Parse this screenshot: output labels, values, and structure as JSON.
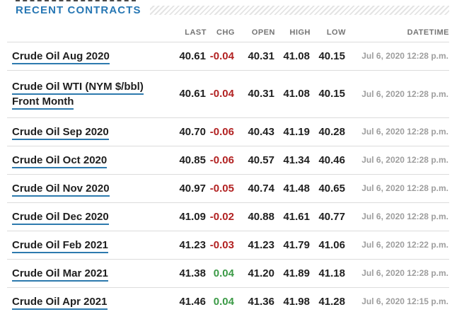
{
  "title": "RECENT CONTRACTS",
  "colors": {
    "accent_blue": "#2777b4",
    "negative_red": "#b22222",
    "positive_green": "#3b9a46",
    "header_gray": "#757575",
    "datetime_gray": "#9e9e9e",
    "link_underline_blue": "#2d7aae",
    "divider_gray": "#dcdcdc",
    "value_black": "#1f1f1f"
  },
  "table": {
    "columns": [
      "LAST",
      "CHG",
      "OPEN",
      "HIGH",
      "LOW",
      "DATETIME"
    ],
    "rows": [
      {
        "name": "Crude Oil Aug 2020",
        "last": "40.61",
        "chg": "-0.04",
        "open": "40.31",
        "high": "41.08",
        "low": "40.15",
        "datetime": "Jul 6, 2020 12:28 p.m."
      },
      {
        "name": "Crude Oil WTI (NYM $/bbl) Front Month",
        "last": "40.61",
        "chg": "-0.04",
        "open": "40.31",
        "high": "41.08",
        "low": "40.15",
        "datetime": "Jul 6, 2020 12:28 p.m."
      },
      {
        "name": "Crude Oil Sep 2020",
        "last": "40.70",
        "chg": "-0.06",
        "open": "40.43",
        "high": "41.19",
        "low": "40.28",
        "datetime": "Jul 6, 2020 12:28 p.m."
      },
      {
        "name": "Crude Oil Oct 2020",
        "last": "40.85",
        "chg": "-0.06",
        "open": "40.57",
        "high": "41.34",
        "low": "40.46",
        "datetime": "Jul 6, 2020 12:28 p.m."
      },
      {
        "name": "Crude Oil Nov 2020",
        "last": "40.97",
        "chg": "-0.05",
        "open": "40.74",
        "high": "41.48",
        "low": "40.65",
        "datetime": "Jul 6, 2020 12:28 p.m."
      },
      {
        "name": "Crude Oil Dec 2020",
        "last": "41.09",
        "chg": "-0.02",
        "open": "40.88",
        "high": "41.61",
        "low": "40.77",
        "datetime": "Jul 6, 2020 12:28 p.m."
      },
      {
        "name": "Crude Oil Feb 2021",
        "last": "41.23",
        "chg": "-0.03",
        "open": "41.23",
        "high": "41.79",
        "low": "41.06",
        "datetime": "Jul 6, 2020 12:22 p.m."
      },
      {
        "name": "Crude Oil Mar 2021",
        "last": "41.38",
        "chg": "0.04",
        "open": "41.20",
        "high": "41.89",
        "low": "41.18",
        "datetime": "Jul 6, 2020 12:28 p.m."
      },
      {
        "name": "Crude Oil Apr 2021",
        "last": "41.46",
        "chg": "0.04",
        "open": "41.36",
        "high": "41.98",
        "low": "41.28",
        "datetime": "Jul 6, 2020 12:15 p.m."
      }
    ]
  }
}
